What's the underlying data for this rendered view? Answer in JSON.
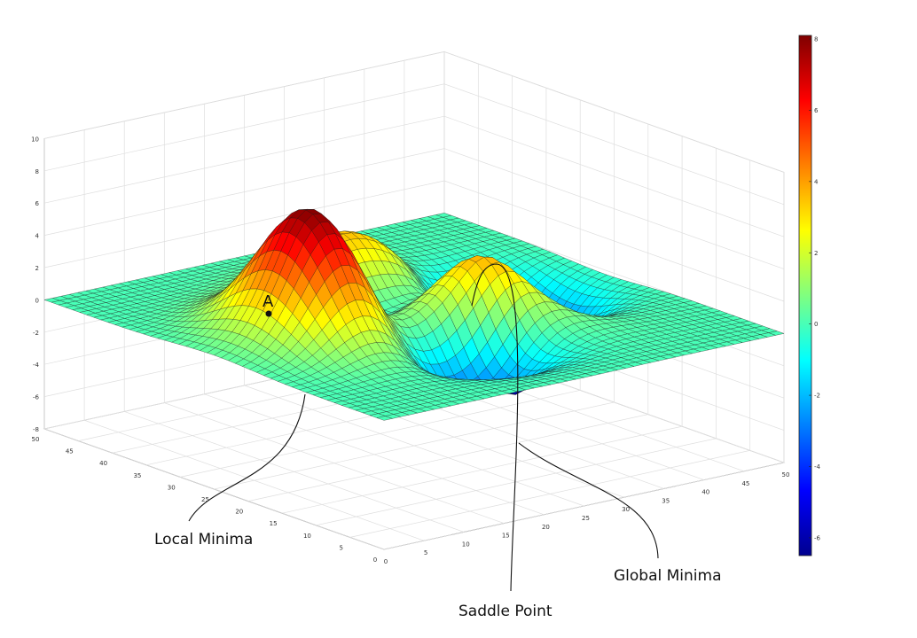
{
  "chart_data": {
    "type": "surface",
    "surface_function": "peaks",
    "grid_size": 49,
    "x_range": [
      0,
      50
    ],
    "y_range": [
      0,
      50
    ],
    "zlim": [
      -8,
      10
    ],
    "x_ticks": [
      "0",
      "5",
      "10",
      "15",
      "20",
      "25",
      "30",
      "35",
      "40",
      "45",
      "50"
    ],
    "y_ticks": [
      "0",
      "5",
      "10",
      "15",
      "20",
      "25",
      "30",
      "35",
      "40",
      "45",
      "50"
    ],
    "z_ticks": [
      "-8",
      "-6",
      "-4",
      "-2",
      "0",
      "2",
      "4",
      "6",
      "8",
      "10"
    ],
    "colorbar": {
      "colormap": "jet",
      "range": [
        -6.5,
        8.1
      ],
      "ticks": [
        "-6",
        "-4",
        "-2",
        "0",
        "2",
        "4",
        "6",
        "8"
      ]
    },
    "grid": true,
    "point": {
      "label": "A"
    },
    "annotations": {
      "local_minima": "Local Minima",
      "saddle_point": "Saddle Point",
      "global_minima": "Global Minima"
    }
  }
}
